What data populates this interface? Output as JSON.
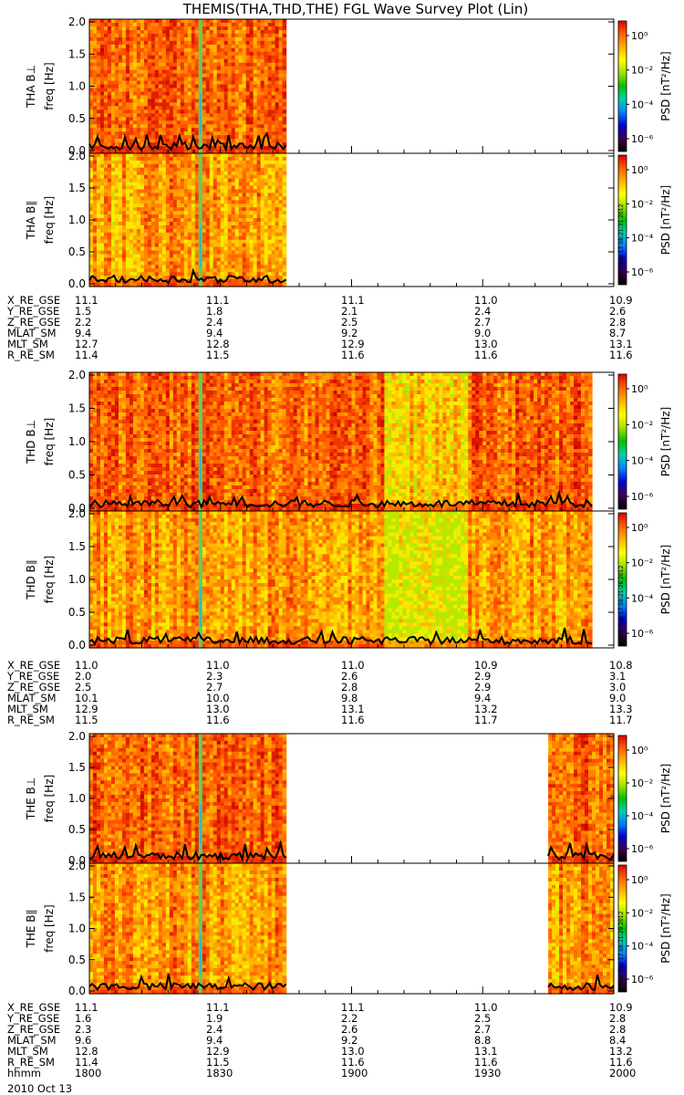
{
  "title": "THEMIS(THA,THD,THE) FGL Wave Survey Plot (Lin)",
  "colorbar": {
    "label": "PSD [nT²/Hz]",
    "ticks": [
      "10⁰",
      "10⁻²",
      "10⁻⁴",
      "10⁻⁶"
    ],
    "colors": [
      "#000000",
      "#3a0050",
      "#0000d0",
      "#0080ff",
      "#00d0b0",
      "#00c000",
      "#a0e000",
      "#ffff00",
      "#ffb000",
      "#ff6000",
      "#e00000"
    ]
  },
  "stamps": [
    "Mon Sep 17 08:21:31 2012",
    "Mon Sep 17 08:21:26 2012",
    "Mon Sep 17 08:21:29 2012"
  ],
  "chart_data": [
    {
      "type": "heatmap",
      "probe": "THA",
      "panels": [
        "THA B⊥",
        "THA B∥"
      ],
      "ylabel": "freq [Hz]",
      "yticks": [
        "0.0",
        "0.5",
        "1.0",
        "1.5",
        "2.0"
      ],
      "ylim": [
        0,
        2.0
      ],
      "data_extent_hhmm": [
        "1800",
        "1845"
      ],
      "ephemeris": {
        "labels": [
          "X_RE_GSE",
          "Y_RE_GSE",
          "Z_RE_GSE",
          "MLAT_SM",
          "MLT_SM",
          "R_RE_SM"
        ],
        "values": [
          [
            "11.1",
            "11.1",
            "11.1",
            "11.0",
            "10.9"
          ],
          [
            "1.5",
            "1.8",
            "2.1",
            "2.4",
            "2.6"
          ],
          [
            "2.2",
            "2.4",
            "2.5",
            "2.7",
            "2.8"
          ],
          [
            "9.4",
            "9.4",
            "9.2",
            "9.0",
            "8.7"
          ],
          [
            "12.7",
            "12.8",
            "12.9",
            "13.0",
            "13.1"
          ],
          [
            "11.4",
            "11.5",
            "11.6",
            "11.6",
            "11.6"
          ]
        ]
      }
    },
    {
      "type": "heatmap",
      "probe": "THD",
      "panels": [
        "THD B⊥",
        "THD B∥"
      ],
      "ylabel": "freq [Hz]",
      "yticks": [
        "0.0",
        "0.5",
        "1.0",
        "1.5",
        "2.0"
      ],
      "ylim": [
        0,
        2.0
      ],
      "data_extent_hhmm": [
        "1800",
        "1955"
      ],
      "ephemeris": {
        "labels": [
          "X_RE_GSE",
          "Y_RE_GSE",
          "Z_RE_GSE",
          "MLAT_SM",
          "MLT_SM",
          "R_RE_SM"
        ],
        "values": [
          [
            "11.0",
            "11.0",
            "11.0",
            "10.9",
            "10.8"
          ],
          [
            "2.0",
            "2.3",
            "2.6",
            "2.9",
            "3.1"
          ],
          [
            "2.5",
            "2.7",
            "2.8",
            "2.9",
            "3.0"
          ],
          [
            "10.1",
            "10.0",
            "9.8",
            "9.4",
            "9.0"
          ],
          [
            "12.9",
            "13.0",
            "13.1",
            "13.2",
            "13.3"
          ],
          [
            "11.5",
            "11.6",
            "11.6",
            "11.7",
            "11.7"
          ]
        ]
      }
    },
    {
      "type": "heatmap",
      "probe": "THE",
      "panels": [
        "THE B⊥",
        "THE B∥"
      ],
      "ylabel": "freq [Hz]",
      "yticks": [
        "0.0",
        "0.5",
        "1.0",
        "1.5",
        "2.0"
      ],
      "ylim": [
        0,
        2.0
      ],
      "data_extent_hhmm": [
        "1800",
        "1845",
        "1945",
        "2000"
      ],
      "ephemeris": {
        "labels": [
          "X_RE_GSE",
          "Y_RE_GSE",
          "Z_RE_GSE",
          "MLAT_SM",
          "MLT_SM",
          "R_RE_SM",
          "hhmm"
        ],
        "values": [
          [
            "11.1",
            "11.1",
            "11.1",
            "11.0",
            "10.9"
          ],
          [
            "1.6",
            "1.9",
            "2.2",
            "2.5",
            "2.8"
          ],
          [
            "2.3",
            "2.4",
            "2.6",
            "2.7",
            "2.8"
          ],
          [
            "9.6",
            "9.4",
            "9.2",
            "8.8",
            "8.4"
          ],
          [
            "12.8",
            "12.9",
            "13.0",
            "13.1",
            "13.2"
          ],
          [
            "11.4",
            "11.5",
            "11.6",
            "11.6",
            "11.6"
          ],
          [
            "1800",
            "1830",
            "1900",
            "1930",
            "2000"
          ]
        ]
      }
    }
  ],
  "date": "2010 Oct 13"
}
